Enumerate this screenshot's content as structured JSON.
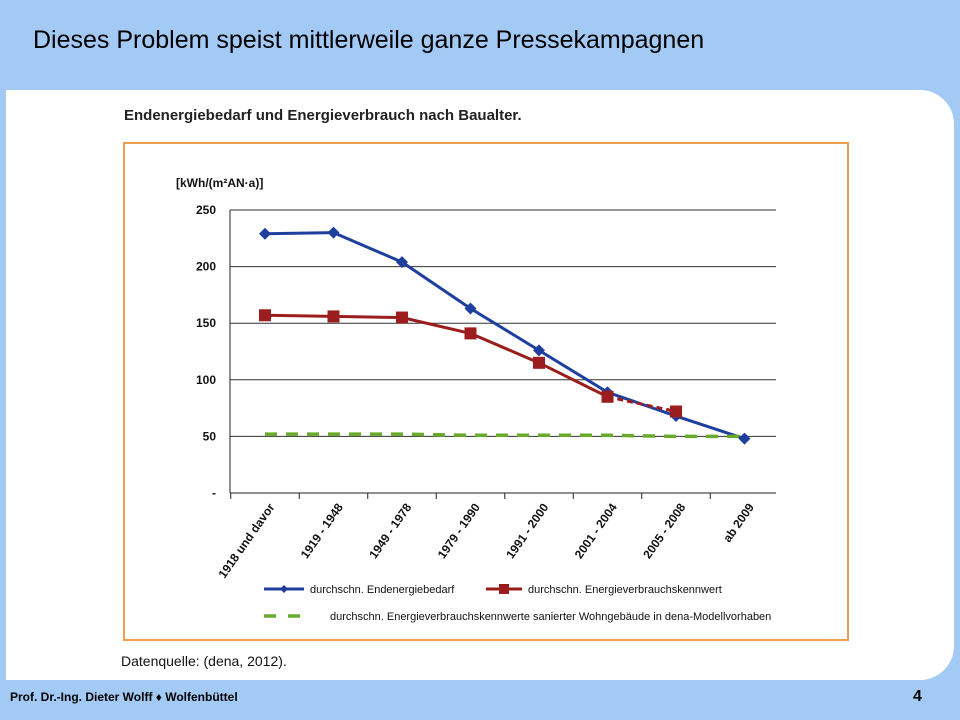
{
  "slide": {
    "title": "Dieses Problem speist mittlerweile ganze Pressekampagnen",
    "footer": "Prof. Dr.-Ing. Dieter Wolff ♦ Wolfenbüttel",
    "page_number": "4"
  },
  "figure": {
    "heading": "Endenergiebedarf und Energieverbrauch nach Baualter.",
    "source": "Datenquelle: (dena, 2012)."
  },
  "colors": {
    "series1": "#1f3f9e",
    "series2": "#9b1d1d",
    "series3": "#6aaa2a",
    "frame": "#e9a050",
    "grid": "#333333",
    "background": "#a3c9f5"
  },
  "chart_data": {
    "type": "line",
    "title": "",
    "ylabel": "[kWh/(m²AN·a)]",
    "xlabel": "",
    "categories": [
      "1918 und davor",
      "1919 - 1948",
      "1949 - 1978",
      "1979 - 1990",
      "1991 - 2000",
      "2001 - 2004",
      "2005 - 2008",
      "ab 2009"
    ],
    "ylim": [
      0,
      250
    ],
    "yticks": [
      {
        "label": "250",
        "value": 250
      },
      {
        "label": "200",
        "value": 200
      },
      {
        "label": "150",
        "value": 150
      },
      {
        "label": "100",
        "value": 100
      },
      {
        "label": "50",
        "value": 50
      },
      {
        "label": "-",
        "value": 0
      }
    ],
    "grid": true,
    "legend_position": "bottom",
    "series": [
      {
        "name": "durchschn. Endenergiebedarf",
        "values": [
          229,
          230,
          204,
          163,
          126,
          89,
          68,
          48
        ],
        "marker": "diamond",
        "style": "solid",
        "color": "#1f3f9e"
      },
      {
        "name": "durchschn. Energieverbrauchskennwert",
        "values": [
          157,
          156,
          155,
          141,
          115,
          85,
          72,
          null
        ],
        "marker": "square",
        "style": "solid",
        "dashed_from_index": 5,
        "color": "#9b1d1d"
      },
      {
        "name": "durchschn. Energieverbrauchskennwerte sanierter Wohngebäude in dena-Modellvorhaben",
        "values": [
          52,
          52,
          52,
          51,
          51,
          51,
          50,
          50
        ],
        "marker": "none",
        "style": "dashed",
        "color": "#6aaa2a"
      }
    ]
  }
}
